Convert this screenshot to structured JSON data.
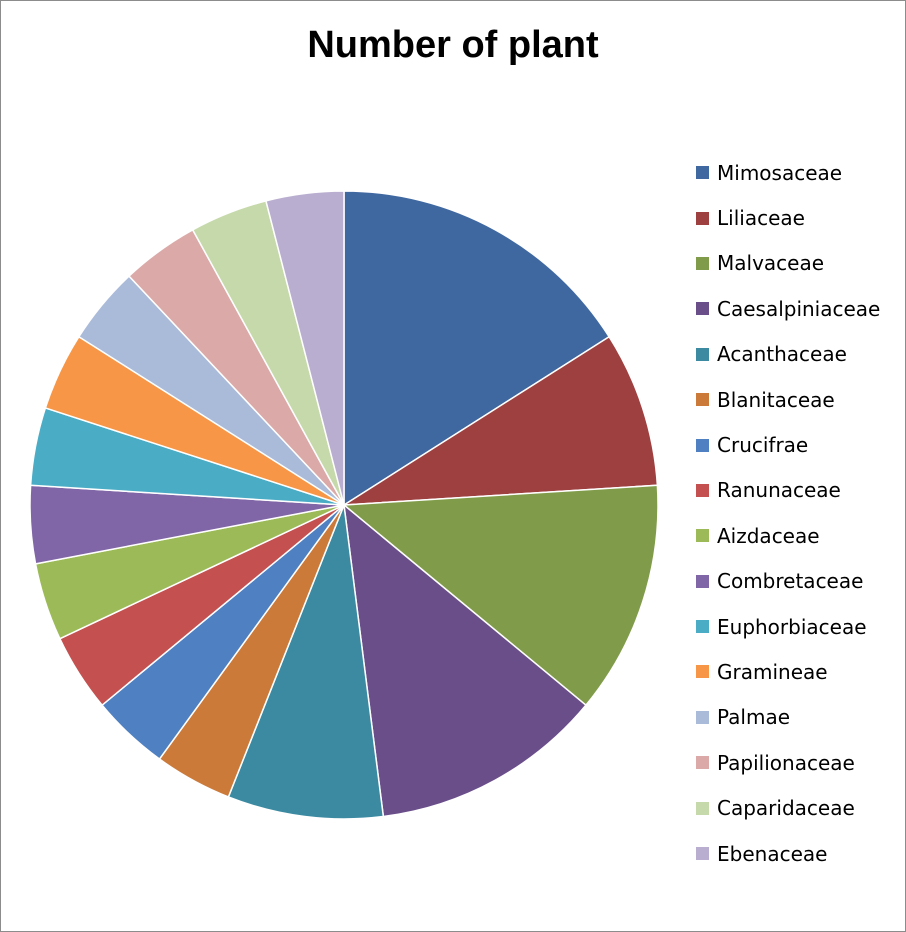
{
  "chart_data": {
    "type": "pie",
    "title": "Number of plant",
    "legend_position": "right",
    "categories": [
      "Mimosaceae",
      "Liliaceae",
      "Malvaceae",
      "Caesalpiniaceae",
      "Acanthaceae",
      "Blanitaceae",
      "Crucifrae",
      "Ranunaceae",
      "Aizdaceae",
      "Combretaceae",
      "Euphorbiaceae",
      "Gramineae",
      "Palmae",
      "Papilionaceae",
      "Caparidaceae",
      "Ebenaceae"
    ],
    "values": [
      4,
      2,
      3,
      3,
      2,
      1,
      1,
      1,
      1,
      1,
      1,
      1,
      1,
      1,
      1,
      1
    ],
    "colors": [
      "#4068A0",
      "#9E4040",
      "#809C4A",
      "#6A4E8A",
      "#3B8AA2",
      "#CB7A3A",
      "#4E80C2",
      "#C55050",
      "#9CBB58",
      "#8066A6",
      "#4BACC6",
      "#F79646",
      "#AABBDA",
      "#DBA9A8",
      "#C6D9AA",
      "#B9AED0"
    ]
  }
}
